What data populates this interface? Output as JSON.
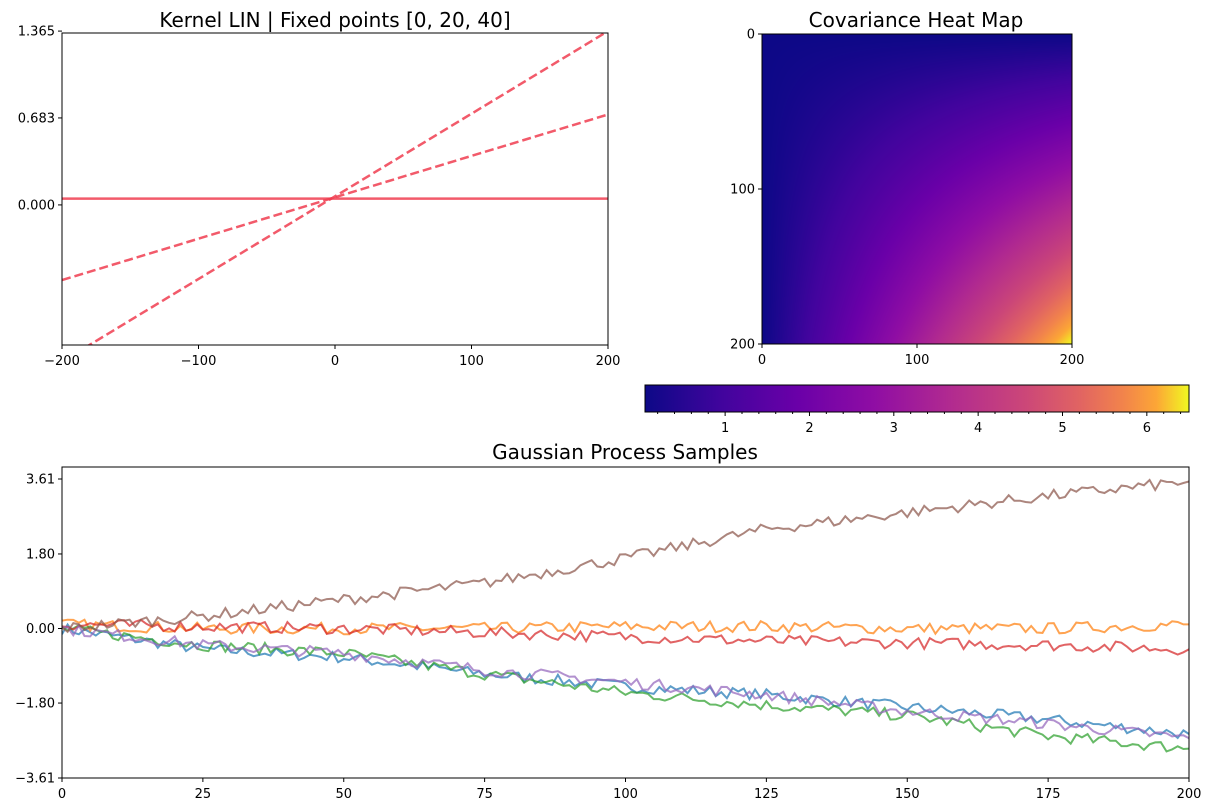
{
  "chart_data": [
    {
      "type": "line",
      "title": "Kernel LIN | Fixed points [0, 20, 40]",
      "xlim": [
        -200,
        200
      ],
      "ylim": [
        -1.1,
        1.35
      ],
      "x_ticks": [
        -200,
        -100,
        0,
        100,
        200
      ],
      "x_tick_labels": [
        "−200",
        "−100",
        "0",
        "100",
        "200"
      ],
      "y_ticks": [
        0.0,
        0.683,
        1.365
      ],
      "y_tick_labels": [
        "0.000",
        "0.683",
        "1.365"
      ],
      "color": "#f03d50",
      "series": [
        {
          "style": "solid",
          "x": [
            -200,
            200
          ],
          "y": [
            0.05,
            0.05
          ]
        },
        {
          "style": "dashed",
          "x": [
            -200,
            200
          ],
          "y": [
            -0.59,
            0.71
          ]
        },
        {
          "style": "dashed",
          "x": [
            -200,
            200
          ],
          "y": [
            -1.23,
            1.365
          ]
        }
      ]
    },
    {
      "type": "heatmap",
      "title": "Covariance Heat Map",
      "colormap": "plasma",
      "xlim": [
        0,
        200
      ],
      "ylim": [
        200,
        0
      ],
      "x_ticks": [
        0,
        100,
        200
      ],
      "x_tick_labels": [
        "0",
        "100",
        "200"
      ],
      "y_ticks": [
        0,
        100,
        200
      ],
      "y_tick_labels": [
        "0",
        "100",
        "200"
      ],
      "value_range": [
        0.05,
        6.5
      ],
      "colorbar": {
        "ticks": [
          1,
          2,
          3,
          4,
          5,
          6
        ],
        "tick_labels": [
          "1",
          "2",
          "3",
          "4",
          "5",
          "6"
        ]
      }
    },
    {
      "type": "line",
      "title": "Gaussian Process Samples",
      "xlim": [
        0,
        200
      ],
      "ylim": [
        -3.61,
        3.9
      ],
      "x_ticks": [
        0,
        25,
        50,
        75,
        100,
        125,
        150,
        175,
        200
      ],
      "x_tick_labels": [
        "0",
        "25",
        "50",
        "75",
        "100",
        "125",
        "150",
        "175",
        "200"
      ],
      "y_ticks": [
        -3.61,
        -1.8,
        0.0,
        1.8,
        3.61
      ],
      "y_tick_labels": [
        "−3.61",
        "−1.80",
        "0.00",
        "1.80",
        "3.61"
      ],
      "series": [
        {
          "color": "#1f77b4",
          "x": [
            0,
            25,
            50,
            75,
            100,
            125,
            150,
            175,
            200
          ],
          "y": [
            0.0,
            -0.5,
            -0.7,
            -1.1,
            -1.4,
            -1.6,
            -1.9,
            -2.2,
            -2.55
          ]
        },
        {
          "color": "#ff7f0e",
          "x": [
            0,
            25,
            50,
            75,
            100,
            125,
            150,
            175,
            200
          ],
          "y": [
            0.1,
            0.0,
            0.0,
            0.0,
            0.05,
            0.05,
            0.0,
            0.0,
            0.1
          ]
        },
        {
          "color": "#2ca02c",
          "x": [
            0,
            25,
            50,
            75,
            100,
            125,
            150,
            175,
            200
          ],
          "y": [
            0.0,
            -0.4,
            -0.6,
            -1.1,
            -1.55,
            -1.85,
            -2.1,
            -2.6,
            -2.9
          ]
        },
        {
          "color": "#d62728",
          "x": [
            0,
            25,
            50,
            75,
            100,
            125,
            150,
            175,
            200
          ],
          "y": [
            0.1,
            0.05,
            0.0,
            -0.1,
            -0.2,
            -0.3,
            -0.35,
            -0.4,
            -0.5
          ]
        },
        {
          "color": "#9467bd",
          "x": [
            0,
            25,
            50,
            75,
            100,
            125,
            150,
            175,
            200
          ],
          "y": [
            0.0,
            -0.4,
            -0.6,
            -1.0,
            -1.3,
            -1.6,
            -2.0,
            -2.3,
            -2.65
          ]
        },
        {
          "color": "#8c564b",
          "x": [
            0,
            25,
            50,
            75,
            100,
            125,
            150,
            175,
            200
          ],
          "y": [
            0.0,
            0.3,
            0.7,
            1.1,
            1.7,
            2.4,
            2.8,
            3.2,
            3.55
          ]
        }
      ]
    }
  ]
}
